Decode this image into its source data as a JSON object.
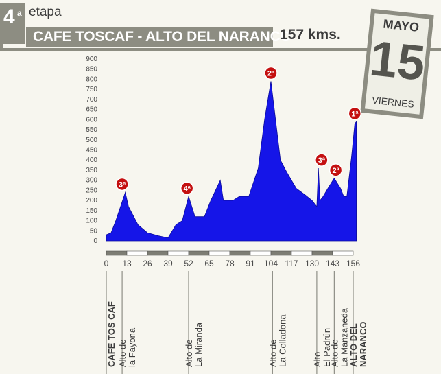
{
  "header": {
    "stage_number": "4",
    "stage_suffix": "a",
    "stage_word": "etapa",
    "route": "CAFE TOSCAF - ALTO DEL NARANCO",
    "distance": "157 kms."
  },
  "calendar": {
    "month": "MAYO",
    "day": "15",
    "weekday": "VIERNES"
  },
  "colors": {
    "profile_fill": "#1515e8",
    "badge": "#c41010",
    "panel": "#8d8d82"
  },
  "chart_data": {
    "type": "area",
    "title": "",
    "xlabel": "",
    "ylabel": "",
    "ylim": [
      0,
      900
    ],
    "xlim": [
      0,
      156
    ],
    "yticks": [
      "900",
      "850",
      "800",
      "750",
      "700",
      "650",
      "600",
      "550",
      "500",
      "450",
      "400",
      "350",
      "300",
      "250",
      "200",
      "150",
      "100",
      "50",
      "0"
    ],
    "xticks": [
      "0",
      "13",
      "26",
      "39",
      "52",
      "65",
      "78",
      "91",
      "104",
      "117",
      "130",
      "143",
      "156"
    ],
    "series": [
      {
        "x": [
          0,
          3,
          6,
          9,
          12,
          14,
          20,
          26,
          33,
          39,
          44,
          48,
          52,
          56,
          62,
          66,
          72,
          74,
          80,
          84,
          90,
          96,
          100,
          104,
          110,
          114,
          120,
          126,
          130,
          133,
          134,
          135,
          137,
          140,
          144,
          148,
          150,
          152,
          155,
          157,
          158
        ],
        "y": [
          30,
          40,
          100,
          170,
          240,
          170,
          80,
          40,
          25,
          15,
          80,
          100,
          220,
          120,
          120,
          200,
          300,
          200,
          200,
          220,
          220,
          360,
          600,
          790,
          400,
          340,
          260,
          225,
          200,
          170,
          360,
          200,
          220,
          260,
          310,
          260,
          220,
          220,
          420,
          580,
          590
        ]
      }
    ],
    "categories": [
      {
        "x": 0,
        "label": "CAFE TOS CAF",
        "bold": true
      },
      {
        "x": 10,
        "label": "Alto de la Fayona",
        "bold": false
      },
      {
        "x": 52,
        "label": "Alto de La Miranda",
        "bold": false
      },
      {
        "x": 105,
        "label": "Alto de La Colladona",
        "bold": false
      },
      {
        "x": 133,
        "label": "Alto El Padrún",
        "bold": false
      },
      {
        "x": 144,
        "label": "Alto de La Manzaneda",
        "bold": false
      },
      {
        "x": 156,
        "label": "ALTO DEL NARANCO",
        "bold": true
      }
    ],
    "climbs": [
      {
        "x": 10,
        "y": 260,
        "category": "3ª"
      },
      {
        "x": 51,
        "y": 240,
        "category": "4ª"
      },
      {
        "x": 104,
        "y": 810,
        "category": "2ª"
      },
      {
        "x": 136,
        "y": 380,
        "category": "3ª"
      },
      {
        "x": 145,
        "y": 330,
        "category": "2ª"
      },
      {
        "x": 157,
        "y": 610,
        "category": "1ª"
      }
    ]
  }
}
